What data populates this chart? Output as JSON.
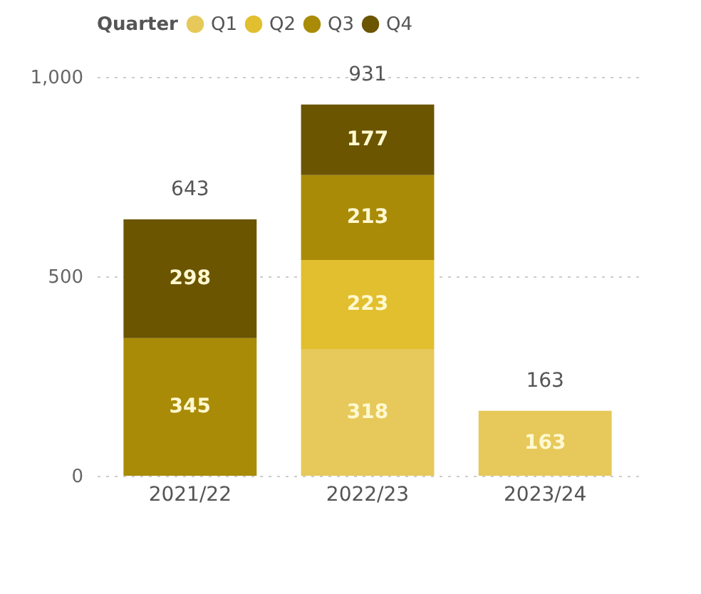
{
  "chart_data": {
    "type": "bar",
    "stacked": true,
    "legend_title": "Quarter",
    "legend": "top left",
    "grid": "y",
    "data_labels": true,
    "categories": [
      "2021/22",
      "2022/23",
      "2023/24"
    ],
    "series": [
      {
        "name": "Q1",
        "color": "#e6c95a",
        "values": [
          null,
          318,
          163
        ]
      },
      {
        "name": "Q2",
        "color": "#e2bf2e",
        "values": [
          null,
          223,
          null
        ]
      },
      {
        "name": "Q3",
        "color": "#a98b08",
        "values": [
          345,
          213,
          null
        ]
      },
      {
        "name": "Q4",
        "color": "#6b5500",
        "values": [
          298,
          177,
          null
        ]
      }
    ],
    "totals": [
      "643",
      "931",
      "163"
    ],
    "ylim": [
      0,
      1000
    ],
    "yticks": [
      0,
      500,
      {
        "value": 1000,
        "label": "1,000"
      }
    ]
  }
}
